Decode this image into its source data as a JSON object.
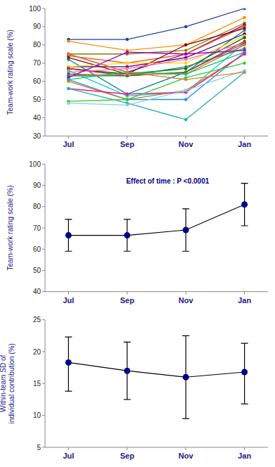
{
  "chart_data": [
    {
      "type": "line",
      "categories": [
        "Jul",
        "Sep",
        "Nov",
        "Jan"
      ],
      "ylim": [
        30,
        100
      ],
      "yticks": [
        30,
        40,
        50,
        60,
        70,
        80,
        90,
        100
      ],
      "y_label": "Team-work rating scale (%)",
      "marker": "circle",
      "series": [
        {
          "color": "#1F3F9F",
          "values": [
            83,
            83,
            90,
            100
          ]
        },
        {
          "color": "#FF8C00",
          "values": [
            82,
            77,
            80,
            95
          ]
        },
        {
          "color": "#808000",
          "values": [
            75,
            75,
            77,
            92
          ]
        },
        {
          "color": "#800080",
          "values": [
            75,
            65,
            75,
            91
          ]
        },
        {
          "color": "#FF4500",
          "values": [
            74,
            70,
            75,
            90
          ]
        },
        {
          "color": "#8B0000",
          "values": [
            73,
            64,
            80,
            89
          ]
        },
        {
          "color": "#008080",
          "values": [
            72,
            53,
            65,
            88
          ]
        },
        {
          "color": "#4B0082",
          "values": [
            68,
            68,
            73,
            86
          ]
        },
        {
          "color": "#FFD700",
          "values": [
            68,
            70,
            70,
            85
          ]
        },
        {
          "color": "#006400",
          "values": [
            67,
            64,
            67,
            84
          ]
        },
        {
          "color": "#DC143C",
          "values": [
            67,
            63,
            65,
            82
          ]
        },
        {
          "color": "#00CED1",
          "values": [
            66,
            52,
            54,
            81
          ]
        },
        {
          "color": "#FF69B4",
          "values": [
            65,
            67,
            72,
            81
          ]
        },
        {
          "color": "#556B2F",
          "values": [
            64,
            63,
            65,
            81
          ]
        },
        {
          "color": "#FF6347",
          "values": [
            63,
            64,
            64,
            80
          ]
        },
        {
          "color": "#2E8B57",
          "values": [
            63,
            63,
            68,
            78
          ]
        },
        {
          "color": "#9400D3",
          "values": [
            62,
            76,
            75,
            77
          ]
        },
        {
          "color": "#00CC66",
          "values": [
            61,
            65,
            64,
            76
          ]
        },
        {
          "color": "#1E90FF",
          "values": [
            61,
            50,
            50,
            76
          ]
        },
        {
          "color": "#B8860B",
          "values": [
            60,
            50,
            55,
            75
          ]
        },
        {
          "color": "#FF1493",
          "values": [
            56,
            53,
            54,
            75
          ]
        },
        {
          "color": "#20B2AA",
          "values": [
            56,
            48,
            39,
            65
          ]
        },
        {
          "color": "#32CD32",
          "values": [
            49,
            50,
            62,
            70
          ]
        },
        {
          "color": "#87CEEB",
          "values": [
            48,
            47,
            55,
            66
          ]
        },
        {
          "color": "#CD853F",
          "values": [
            75,
            65,
            61,
            65
          ]
        }
      ]
    },
    {
      "type": "line",
      "categories": [
        "Jul",
        "Sep",
        "Nov",
        "Jan"
      ],
      "ylim": [
        40,
        100
      ],
      "yticks": [
        40,
        50,
        60,
        70,
        80,
        90,
        100
      ],
      "y_label": "Team-work rating scale (%)",
      "annotation": "Effect of time :  P <0.0001",
      "marker": "circle",
      "series": [
        {
          "color": "#00008B",
          "values": [
            66.5,
            66.5,
            69.0,
            81.0
          ],
          "error_low": [
            7.5,
            7.5,
            10.0,
            10.0
          ],
          "error_high": [
            7.5,
            7.5,
            10.0,
            10.0
          ]
        }
      ]
    },
    {
      "type": "line",
      "categories": [
        "Jul",
        "Sep",
        "Nov",
        "Jan"
      ],
      "ylim": [
        5,
        25
      ],
      "yticks": [
        5,
        10,
        15,
        20,
        25
      ],
      "y_label": "Within-team SD of\nindividual contribution (%)",
      "marker": "circle",
      "series": [
        {
          "color": "#00008B",
          "values": [
            18.3,
            17.0,
            16.0,
            16.8
          ],
          "error_low": [
            4.5,
            4.5,
            6.5,
            5.0
          ],
          "error_high": [
            4.0,
            4.5,
            6.5,
            4.5
          ]
        }
      ]
    }
  ]
}
